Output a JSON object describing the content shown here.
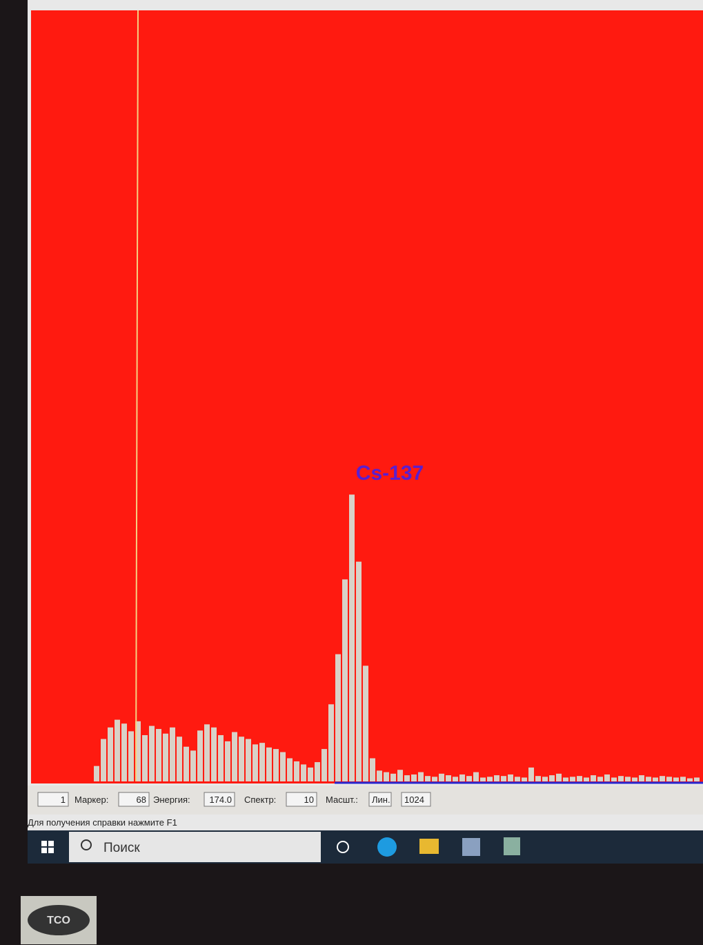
{
  "spectrum": {
    "annotation": "Cs-137",
    "values": [
      20,
      55,
      70,
      80,
      75,
      65,
      78,
      60,
      72,
      68,
      62,
      70,
      58,
      45,
      40,
      66,
      74,
      70,
      60,
      52,
      64,
      58,
      55,
      48,
      50,
      44,
      42,
      38,
      30,
      26,
      22,
      18,
      25,
      42,
      100,
      165,
      262,
      372,
      285,
      150,
      30,
      14,
      12,
      10,
      15,
      8,
      9,
      12,
      7,
      6,
      10,
      8,
      6,
      9,
      7,
      12,
      5,
      6,
      8,
      7,
      9,
      6,
      5,
      18,
      7,
      6,
      8,
      10,
      5,
      6,
      7,
      5,
      8,
      6,
      9,
      5,
      7,
      6,
      5,
      8,
      6,
      5,
      7,
      6,
      5,
      6,
      4,
      5
    ],
    "ylim": [
      0,
      1000
    ],
    "color": "#d9d2c8",
    "background": "#ff1a10"
  },
  "status_bar": {
    "fields": [
      "1",
      "Маркер:",
      "68",
      "Энергия:",
      "174.0",
      "Спектр:",
      "10",
      "Масшт.:",
      "Лин.",
      "1024"
    ],
    "help": "Для получения справки нажмите F1"
  },
  "taskbar": {
    "search": "Поиск"
  },
  "monitor": {
    "logo": "TCO"
  }
}
